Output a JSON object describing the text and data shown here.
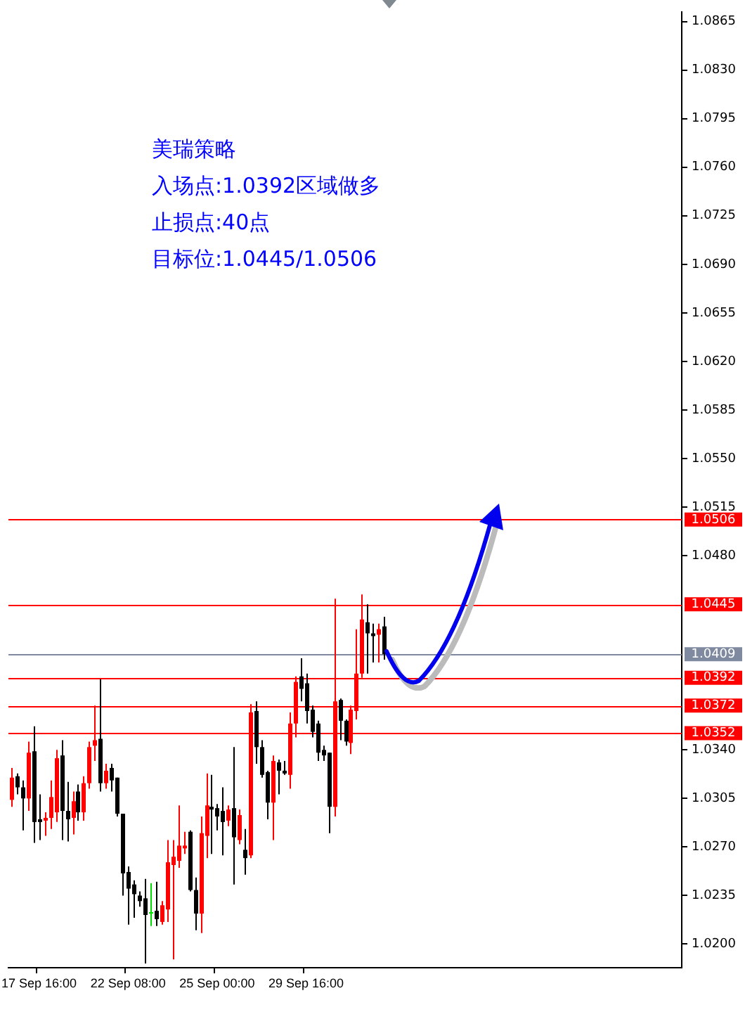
{
  "chart_data": {
    "type": "candlestick",
    "categories": [
      null,
      null,
      null,
      null,
      null,
      "17 Sep 16:00",
      null,
      null,
      null,
      null,
      null,
      null,
      null,
      null,
      null,
      null,
      null,
      null,
      null,
      null,
      null,
      "22 Sep 08:00",
      null,
      null,
      null,
      null,
      null,
      null,
      null,
      null,
      null,
      null,
      null,
      null,
      null,
      null,
      null,
      "25 Sep 00:00",
      null,
      null,
      null,
      null,
      null,
      null,
      null,
      null,
      null,
      null,
      null,
      null,
      null,
      null,
      null,
      "29 Sep 16:00",
      null,
      null,
      null,
      null,
      null,
      null,
      null,
      null,
      null,
      null,
      null,
      null,
      null,
      null,
      null,
      null,
      null,
      null,
      null,
      null,
      null,
      null,
      null,
      null,
      null,
      null,
      null,
      null,
      null,
      null,
      null,
      null,
      null,
      null,
      null,
      null,
      null,
      null,
      null,
      null,
      null,
      null,
      null,
      null,
      null,
      null,
      null,
      null,
      null,
      null,
      null,
      null,
      null,
      null,
      null,
      null,
      null,
      null,
      null,
      null,
      null,
      null,
      null,
      null,
      null,
      null,
      null
    ],
    "ohlc": [
      [
        1.0304,
        1.0327,
        1.0299,
        1.032
      ],
      [
        1.0321,
        1.0323,
        1.0308,
        1.0313
      ],
      [
        1.0313,
        1.0318,
        1.0282,
        1.0305
      ],
      [
        1.0305,
        1.0346,
        1.0296,
        1.0338
      ],
      [
        1.0339,
        1.0357,
        1.0273,
        1.0288
      ],
      [
        1.029,
        1.0308,
        1.0275,
        1.0288
      ],
      [
        1.0289,
        1.0295,
        1.0278,
        1.0291
      ],
      [
        1.0291,
        1.0318,
        1.0283,
        1.0306
      ],
      [
        1.0295,
        1.034,
        1.0288,
        1.0334
      ],
      [
        1.0336,
        1.0347,
        1.0275,
        1.0296
      ],
      [
        1.0296,
        1.0317,
        1.0274,
        1.029
      ],
      [
        1.0291,
        1.031,
        1.0279,
        1.0303
      ],
      [
        1.031,
        1.0315,
        1.0289,
        1.0295
      ],
      [
        1.0295,
        1.0321,
        1.0289,
        1.0316
      ],
      [
        1.0316,
        1.0346,
        1.0312,
        1.0342
      ],
      [
        1.0343,
        1.0372,
        1.0332,
        1.0347
      ],
      [
        1.0348,
        1.0391,
        1.031,
        1.0316
      ],
      [
        1.0316,
        1.033,
        1.0312,
        1.0325
      ],
      [
        1.0327,
        1.033,
        1.031,
        1.0318
      ],
      [
        1.032,
        1.032,
        1.0292,
        1.0294
      ],
      [
        1.0294,
        1.0294,
        1.0235,
        1.0251
      ],
      [
        1.0252,
        1.0256,
        1.0214,
        1.024
      ],
      [
        1.0243,
        1.0246,
        1.0219,
        1.0236
      ],
      [
        1.0235,
        1.0238,
        1.0227,
        1.0231
      ],
      [
        1.0233,
        1.0247,
        1.0186,
        1.0221
      ],
      [
        1.0223,
        1.0244,
        1.0213,
        1.0223
      ],
      [
        1.0224,
        1.0245,
        1.0213,
        1.0218
      ],
      [
        1.0216,
        1.0231,
        1.0214,
        1.0228
      ],
      [
        1.0225,
        1.0275,
        1.0216,
        1.0259
      ],
      [
        1.0257,
        1.0275,
        1.0189,
        1.0263
      ],
      [
        1.026,
        1.03,
        1.0255,
        1.0271
      ],
      [
        1.0269,
        1.0281,
        1.0265,
        1.0271
      ],
      [
        1.0281,
        1.0282,
        1.0238,
        1.0239
      ],
      [
        1.0239,
        1.0248,
        1.021,
        1.0222
      ],
      [
        1.0222,
        1.0292,
        1.0208,
        1.028
      ],
      [
        1.0278,
        1.0323,
        1.0262,
        1.03
      ],
      [
        1.0299,
        1.0322,
        1.0265,
        1.0297
      ],
      [
        1.0298,
        1.0301,
        1.0282,
        1.0292
      ],
      [
        1.0296,
        1.0313,
        1.0264,
        1.0288
      ],
      [
        1.0289,
        1.03,
        1.0285,
        1.0297
      ],
      [
        1.0298,
        1.0342,
        1.0243,
        1.0277
      ],
      [
        1.0275,
        1.0297,
        1.0272,
        1.0293
      ],
      [
        1.0268,
        1.0283,
        1.025,
        1.0262
      ],
      [
        1.0264,
        1.0373,
        1.0262,
        1.0367
      ],
      [
        1.0368,
        1.0375,
        1.033,
        1.0342
      ],
      [
        1.0342,
        1.0347,
        1.032,
        1.0322
      ],
      [
        1.0324,
        1.0325,
        1.029,
        1.0302
      ],
      [
        1.0302,
        1.0336,
        1.0275,
        1.0332
      ],
      [
        1.0331,
        1.0333,
        1.0308,
        1.0325
      ],
      [
        1.0325,
        1.0332,
        1.0322,
        1.0323
      ],
      [
        1.0322,
        1.0367,
        1.0312,
        1.0359
      ],
      [
        1.0359,
        1.0393,
        1.0349,
        1.0389
      ],
      [
        1.0393,
        1.0406,
        1.0375,
        1.0384
      ],
      [
        1.0388,
        1.0395,
        1.0359,
        1.0368
      ],
      [
        1.0369,
        1.0372,
        1.0349,
        1.0353
      ],
      [
        1.0359,
        1.0361,
        1.0332,
        1.0338
      ],
      [
        1.034,
        1.0343,
        1.0332,
        1.0336
      ],
      [
        1.0338,
        1.0338,
        1.028,
        1.0299
      ],
      [
        1.0299,
        1.0449,
        1.0292,
        1.0375
      ],
      [
        1.0376,
        1.0377,
        1.0347,
        1.0361
      ],
      [
        1.0361,
        1.0362,
        1.0343,
        1.0346
      ],
      [
        1.0345,
        1.0372,
        1.0337,
        1.0369
      ],
      [
        1.0368,
        1.0427,
        1.0362,
        1.0395
      ],
      [
        1.0395,
        1.0452,
        1.0392,
        1.0434
      ],
      [
        1.0432,
        1.0445,
        1.0395,
        1.0424
      ],
      [
        1.0424,
        1.0431,
        1.0403,
        1.0422
      ],
      [
        1.0423,
        1.0431,
        1.0403,
        1.0427
      ],
      [
        1.0429,
        1.0436,
        1.0405,
        1.0409
      ],
      null,
      null,
      null,
      null,
      null,
      null,
      null,
      null,
      null,
      null,
      null,
      null,
      null,
      null,
      null,
      null,
      null,
      null,
      null,
      null,
      null,
      null,
      null,
      null,
      null,
      null,
      null,
      null,
      null,
      null,
      null,
      null,
      null,
      null,
      null,
      null,
      null,
      null,
      null,
      null,
      null,
      null,
      null,
      null,
      null,
      null,
      null,
      null,
      null,
      null,
      null,
      null,
      null
    ],
    "colors": [
      "#ff0000",
      "#000000",
      "#000000",
      "#ff0000",
      "#000000",
      "#000000",
      "#ff0000",
      "#ff0000",
      "#ff0000",
      "#000000",
      "#000000",
      "#ff0000",
      "#000000",
      "#ff0000",
      "#ff0000",
      "#ff0000",
      "#000000",
      "#ff0000",
      "#000000",
      "#000000",
      "#000000",
      "#000000",
      "#000000",
      "#000000",
      "#000000",
      "#00dd00",
      "#000000",
      "#ff0000",
      "#ff0000",
      "#ff0000",
      "#ff0000",
      "#ff0000",
      "#000000",
      "#000000",
      "#ff0000",
      "#ff0000",
      "#000000",
      "#000000",
      "#000000",
      "#ff0000",
      "#000000",
      "#ff0000",
      "#000000",
      "#ff0000",
      "#000000",
      "#000000",
      "#000000",
      "#ff0000",
      "#000000",
      "#000000",
      "#ff0000",
      "#ff0000",
      "#000000",
      "#000000",
      "#000000",
      "#000000",
      "#000000",
      "#000000",
      "#ff0000",
      "#000000",
      "#000000",
      "#ff0000",
      "#ff0000",
      "#ff0000",
      "#000000",
      "#000000",
      "#ff0000",
      "#000000",
      null,
      null,
      null,
      null,
      null,
      null,
      null,
      null,
      null,
      null,
      null,
      null,
      null,
      null,
      null,
      null,
      null,
      null,
      null,
      null,
      null,
      null,
      null,
      null,
      null,
      null,
      null,
      null,
      null,
      null,
      null,
      null,
      null,
      null,
      null,
      null,
      null,
      null,
      null,
      null,
      null,
      null,
      null,
      null,
      null,
      null,
      null,
      null,
      null,
      null,
      null,
      null,
      null
    ],
    "ylim": [
      1.0183,
      1.0872
    ],
    "yticks": [
      1.0865,
      {
        "value": 1.083,
        "label": "1.0830"
      },
      1.0795,
      {
        "value": 1.076,
        "label": "1.0760"
      },
      1.0725,
      {
        "value": 1.069,
        "label": "1.0690"
      },
      1.0655,
      {
        "value": 1.062,
        "label": "1.0620"
      },
      1.0585,
      {
        "value": 1.055,
        "label": "1.0550"
      },
      1.0515,
      {
        "value": 1.048,
        "label": "1.0480"
      },
      {
        "value": 1.034,
        "label": "1.0340"
      },
      1.0305,
      {
        "value": 1.027,
        "label": "1.0270"
      },
      1.0235,
      {
        "value": 1.02,
        "label": "1.0200"
      }
    ],
    "ref_lines": [
      {
        "axis": "y",
        "value": 1.0506,
        "label": "1.0506",
        "color": "#ff0000"
      },
      {
        "axis": "y",
        "value": 1.0445,
        "label": "1.0445",
        "color": "#ff0000"
      },
      {
        "axis": "y",
        "value": 1.0409,
        "label": "1.0409",
        "color": "#7f8aa0"
      },
      {
        "axis": "y",
        "value": 1.0392,
        "label": "1.0392",
        "color": "#ff0000"
      },
      {
        "axis": "y",
        "value": 1.0372,
        "label": "1.0372",
        "color": "#ff0000"
      },
      {
        "axis": "y",
        "value": 1.0352,
        "label": "1.0352",
        "color": "#ff0000"
      }
    ],
    "annotations": [
      "美瑞策略",
      "入场点:1.0392区域做多",
      "止损点:40点",
      "目标位:1.0445/1.0506"
    ],
    "grid": false,
    "legend": false
  }
}
